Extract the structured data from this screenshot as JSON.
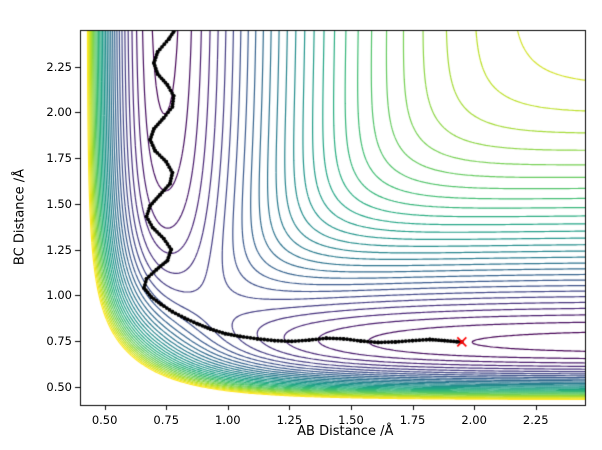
{
  "chart_data": {
    "type": "contour",
    "title": "",
    "xlabel": "AB Distance /Å",
    "ylabel": "BC Distance /Å",
    "xlim": [
      0.4,
      2.45
    ],
    "ylim": [
      0.4,
      2.45
    ],
    "x_ticks": [
      "0.50",
      "0.75",
      "1.00",
      "1.25",
      "1.50",
      "1.75",
      "2.00",
      "2.25"
    ],
    "y_ticks": [
      "0.50",
      "0.75",
      "1.00",
      "1.25",
      "1.50",
      "1.75",
      "2.00",
      "2.25"
    ],
    "grid": false,
    "legend": "none",
    "colormap": {
      "name": "viridis",
      "stops": [
        "#440154",
        "#482475",
        "#414487",
        "#355f8d",
        "#2a788e",
        "#21918c",
        "#22a884",
        "#44bf70",
        "#7ad151",
        "#bddf26",
        "#fde725"
      ]
    },
    "potential": {
      "model": "LEPS-surface-estimate",
      "D": 1.0,
      "a": 2.2,
      "r0": 0.742,
      "grid_n": 220
    },
    "levels": {
      "min": -0.98,
      "max": -0.02,
      "count": 30
    },
    "trajectory": {
      "color": "#000000",
      "points": [
        [
          0.785,
          2.45
        ],
        [
          0.76,
          2.4
        ],
        [
          0.715,
          2.33
        ],
        [
          0.7,
          2.27
        ],
        [
          0.715,
          2.21
        ],
        [
          0.755,
          2.15
        ],
        [
          0.78,
          2.09
        ],
        [
          0.775,
          2.03
        ],
        [
          0.74,
          1.97
        ],
        [
          0.7,
          1.91
        ],
        [
          0.685,
          1.85
        ],
        [
          0.705,
          1.79
        ],
        [
          0.75,
          1.73
        ],
        [
          0.775,
          1.67
        ],
        [
          0.765,
          1.61
        ],
        [
          0.725,
          1.55
        ],
        [
          0.685,
          1.49
        ],
        [
          0.67,
          1.43
        ],
        [
          0.695,
          1.37
        ],
        [
          0.74,
          1.31
        ],
        [
          0.77,
          1.25
        ],
        [
          0.755,
          1.19
        ],
        [
          0.71,
          1.14
        ],
        [
          0.67,
          1.09
        ],
        [
          0.66,
          1.04
        ],
        [
          0.69,
          0.99
        ],
        [
          0.73,
          0.95
        ],
        [
          0.775,
          0.91
        ],
        [
          0.825,
          0.875
        ],
        [
          0.875,
          0.845
        ],
        [
          0.93,
          0.815
        ],
        [
          0.99,
          0.79
        ],
        [
          1.05,
          0.775
        ],
        [
          1.12,
          0.762
        ],
        [
          1.19,
          0.752
        ],
        [
          1.26,
          0.748
        ],
        [
          1.33,
          0.755
        ],
        [
          1.4,
          0.765
        ],
        [
          1.47,
          0.762
        ],
        [
          1.54,
          0.75
        ],
        [
          1.61,
          0.742
        ],
        [
          1.68,
          0.745
        ],
        [
          1.75,
          0.752
        ],
        [
          1.82,
          0.758
        ],
        [
          1.88,
          0.752
        ],
        [
          1.93,
          0.746
        ],
        [
          1.95,
          0.745
        ]
      ]
    },
    "end_marker": {
      "type": "x",
      "color": "#ff0000",
      "x": 1.95,
      "y": 0.745
    },
    "axis_color": "#000000",
    "background_color": "#ffffff"
  }
}
